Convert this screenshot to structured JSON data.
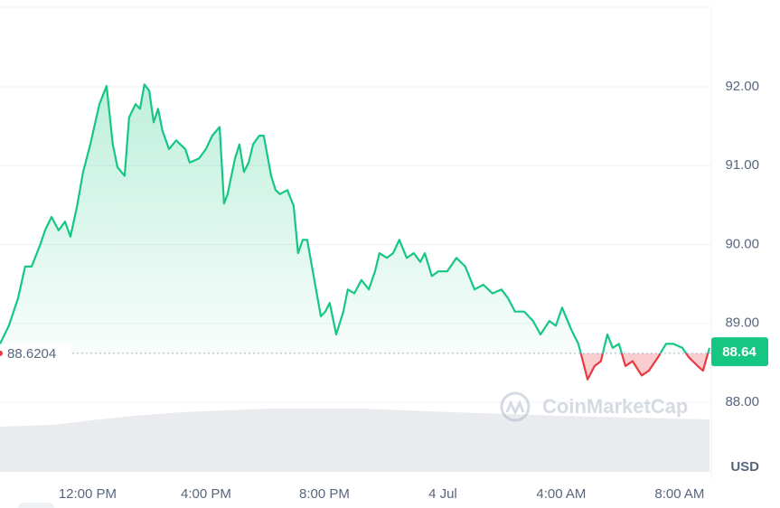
{
  "chart_data": {
    "type": "line",
    "x": [
      9.04,
      9.34,
      9.65,
      9.89,
      10.11,
      10.41,
      10.56,
      10.78,
      11.02,
      11.24,
      11.42,
      11.63,
      11.85,
      12.09,
      12.4,
      12.64,
      12.85,
      13.01,
      13.25,
      13.4,
      13.62,
      13.77,
      13.92,
      14.08,
      14.23,
      14.38,
      14.53,
      14.75,
      14.99,
      15.3,
      15.45,
      15.76,
      16.0,
      16.21,
      16.46,
      16.61,
      16.73,
      16.98,
      17.13,
      17.28,
      17.44,
      17.59,
      17.8,
      17.95,
      18.2,
      18.35,
      18.5,
      18.75,
      18.96,
      19.11,
      19.27,
      19.42,
      19.66,
      19.88,
      20.03,
      20.18,
      20.4,
      20.64,
      20.79,
      21.01,
      21.25,
      21.5,
      21.71,
      21.86,
      22.11,
      22.32,
      22.53,
      22.78,
      23.02,
      23.24,
      23.39,
      23.63,
      23.85,
      24.15,
      24.46,
      24.76,
      25.07,
      25.37,
      25.68,
      25.98,
      26.2,
      26.44,
      26.75,
      27.05,
      27.3,
      27.6,
      27.82,
      28.03,
      28.34,
      28.58,
      28.89,
      29.13,
      29.34,
      29.56,
      29.74,
      29.95,
      30.17,
      30.41,
      30.72,
      30.96,
      31.27,
      31.54,
      31.79,
      32.09,
      32.31,
      32.61,
      32.79,
      33.01
    ],
    "values": [
      88.74,
      88.97,
      89.32,
      89.72,
      89.72,
      90.01,
      90.18,
      90.35,
      90.18,
      90.29,
      90.1,
      90.46,
      90.92,
      91.27,
      91.78,
      92.01,
      91.27,
      90.98,
      90.87,
      91.61,
      91.78,
      91.72,
      92.03,
      91.95,
      91.55,
      91.72,
      91.44,
      91.21,
      91.32,
      91.21,
      91.04,
      91.09,
      91.21,
      91.38,
      91.49,
      90.52,
      90.64,
      91.09,
      91.27,
      90.92,
      91.04,
      91.27,
      91.38,
      91.38,
      90.87,
      90.69,
      90.64,
      90.69,
      90.49,
      89.89,
      90.06,
      90.06,
      89.55,
      89.09,
      89.15,
      89.26,
      88.86,
      89.15,
      89.43,
      89.38,
      89.55,
      89.43,
      89.66,
      89.89,
      89.83,
      89.89,
      90.06,
      89.83,
      89.89,
      89.78,
      89.89,
      89.6,
      89.66,
      89.66,
      89.83,
      89.72,
      89.43,
      89.49,
      89.38,
      89.43,
      89.32,
      89.15,
      89.15,
      89.03,
      88.86,
      89.03,
      88.97,
      89.2,
      88.92,
      88.74,
      88.29,
      88.46,
      88.52,
      88.86,
      88.69,
      88.74,
      88.46,
      88.52,
      88.34,
      88.4,
      88.57,
      88.74,
      88.74,
      88.69,
      88.57,
      88.46,
      88.4,
      88.69
    ],
    "color": "#16c784",
    "below_color": "#ea3943",
    "baseline": 88.6204,
    "last_price": 88.64,
    "xlim": [
      9.04,
      33.01
    ],
    "ylim": [
      87.12,
      93.0
    ],
    "xticks": [
      {
        "value": 12,
        "label": "12:00 PM"
      },
      {
        "value": 16,
        "label": "4:00 PM"
      },
      {
        "value": 20,
        "label": "8:00 PM"
      },
      {
        "value": 24,
        "label": "4 Jul"
      },
      {
        "value": 28,
        "label": "4:00 AM"
      },
      {
        "value": 32,
        "label": "8:00 AM"
      }
    ],
    "yticks": [
      {
        "value": 88,
        "label": "88.00"
      },
      {
        "value": 89,
        "label": "89.00"
      },
      {
        "value": 90,
        "label": "90.00"
      },
      {
        "value": 91,
        "label": "91.00"
      },
      {
        "value": 92,
        "label": "92.00"
      }
    ],
    "unit": "USD",
    "watermark": "CoinMarketCap",
    "grid": true
  }
}
